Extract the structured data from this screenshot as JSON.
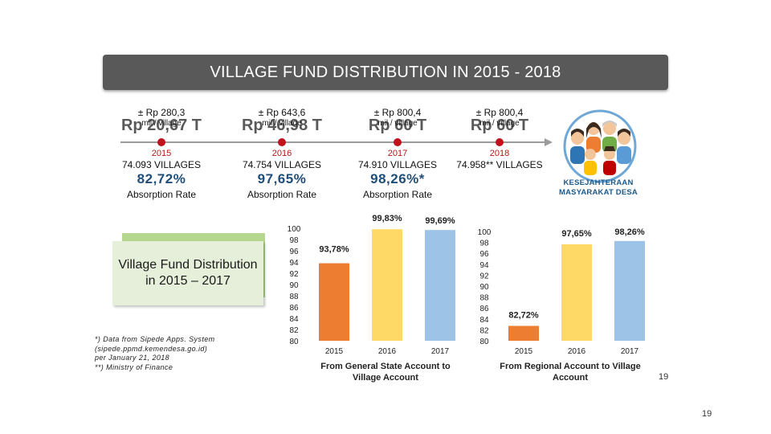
{
  "title": "VILLAGE FUND DISTRIBUTION IN 2015 - 2018",
  "years": [
    {
      "amount": "± Rp 280,3",
      "unit": "mil / village",
      "total": "Rp 20,67 T",
      "year": "2015",
      "villages": "74.093 VILLAGES",
      "rate": "82,72%",
      "rate_label": "Absorption Rate"
    },
    {
      "amount": "± Rp 643,6",
      "unit": "mil / village",
      "total": "Rp 46,98 T",
      "year": "2016",
      "villages": "74.754 VILLAGES",
      "rate": "97,65%",
      "rate_label": "Absorption Rate"
    },
    {
      "amount": "± Rp 800,4",
      "unit": "mil / village",
      "total": "Rp 60 T",
      "year": "2017",
      "villages": "74.910 VILLAGES",
      "rate": "98,26%*",
      "rate_label": "Absorption Rate"
    },
    {
      "amount": "± Rp 800,4",
      "unit": "mil / village",
      "total": "Rp 60 T",
      "year": "2018",
      "villages": "74.958** VILLAGES",
      "rate": "",
      "rate_label": ""
    }
  ],
  "logo": {
    "line1": "KESEJAHTERAAN",
    "line2": "MASYARAKAT DESA",
    "colors": {
      "blue": "#1d5a8a",
      "ring": "#6fa8d6"
    }
  },
  "box_label": "Village Fund Distribution in 2015 – 2017",
  "notes": [
    "*) Data from Sipede Apps. System",
    "(sipede.ppmd.kemendesa.go.id)",
    "per January 21, 2018",
    "**) Ministry of Finance"
  ],
  "chart_data": [
    {
      "type": "bar",
      "title": "From General State Account to Village Account",
      "categories": [
        "2015",
        "2016",
        "2017"
      ],
      "values": [
        93.78,
        99.83,
        99.69
      ],
      "labels": [
        "93,78%",
        "99,83%",
        "99,69%"
      ],
      "colors": [
        "#ed7d31",
        "#ffd966",
        "#9dc3e6"
      ],
      "ylim": [
        80,
        100
      ],
      "yticks": [
        "100",
        "98",
        "96",
        "94",
        "92",
        "90",
        "88",
        "86",
        "84",
        "82",
        "80"
      ],
      "grid": false
    },
    {
      "type": "bar",
      "title": "From Regional Account to Village Account",
      "categories": [
        "2015",
        "2016",
        "2017"
      ],
      "values": [
        82.72,
        97.65,
        98.26
      ],
      "labels": [
        "82,72%",
        "97,65%",
        "98,26%"
      ],
      "colors": [
        "#ed7d31",
        "#ffd966",
        "#9dc3e6"
      ],
      "ylim": [
        80,
        100
      ],
      "yticks": [
        "100",
        "98",
        "96",
        "94",
        "92",
        "90",
        "88",
        "86",
        "84",
        "82",
        "80"
      ],
      "grid": false
    }
  ],
  "page_numbers": {
    "inner": "19",
    "outer": "19"
  }
}
